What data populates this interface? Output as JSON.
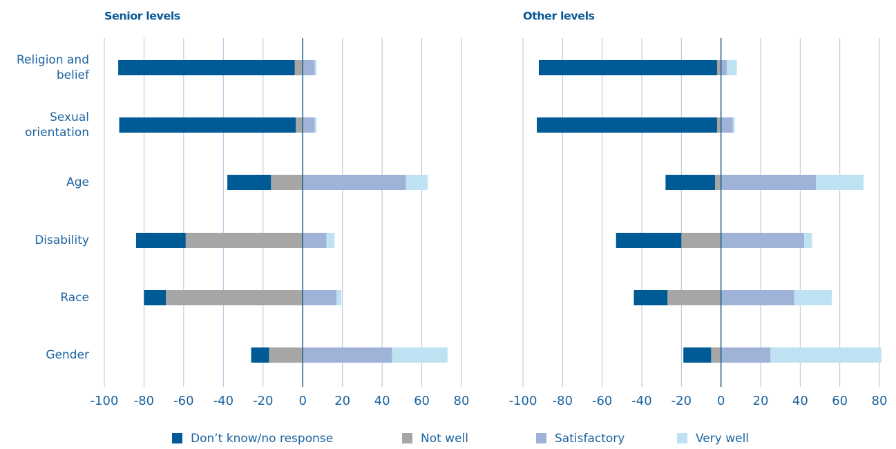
{
  "chart_data": [
    {
      "type": "diverging-bar",
      "title": "Senior levels",
      "categories": [
        "Religion and belief",
        "Sexual orientation",
        "Age",
        "Disability",
        "Race",
        "Gender"
      ],
      "series": [
        {
          "name": "Don’t know/no response",
          "color": "#005a96",
          "values": [
            -89,
            -89,
            -22,
            -25,
            -11,
            -9
          ]
        },
        {
          "name": "Not well",
          "color": "#a6a6a6",
          "values": [
            -4,
            -3.5,
            -16,
            -59,
            -69,
            -17
          ]
        },
        {
          "name": "Satisfactory",
          "color": "#9fb3d9",
          "values": [
            6,
            6,
            52,
            12,
            17,
            45
          ]
        },
        {
          "name": "Very well",
          "color": "#bfe2f3",
          "values": [
            1,
            1,
            11,
            4,
            2.5,
            28
          ]
        }
      ],
      "xlim": [
        -100,
        80
      ],
      "xticks": [
        -100,
        -80,
        -60,
        -40,
        -20,
        0,
        20,
        40,
        60,
        80
      ],
      "grid": true
    },
    {
      "type": "diverging-bar",
      "title": "Other levels",
      "series": [
        {
          "color": "#005a96",
          "values": [
            -90,
            -91,
            -25,
            -33,
            -17,
            -14
          ]
        },
        {
          "color": "#a6a6a6",
          "values": [
            -2,
            -2,
            -3,
            -20,
            -27,
            -5
          ]
        },
        {
          "color": "#9fb3d9",
          "values": [
            3,
            6,
            48,
            42,
            37,
            25
          ]
        },
        {
          "color": "#bfe2f3",
          "values": [
            5,
            1,
            24,
            4,
            19,
            56
          ]
        }
      ],
      "xlim": [
        -100,
        80
      ],
      "xticks": [
        -100,
        -80,
        -60,
        -40,
        -20,
        0,
        20,
        40,
        60,
        80
      ],
      "grid": true
    }
  ]
}
